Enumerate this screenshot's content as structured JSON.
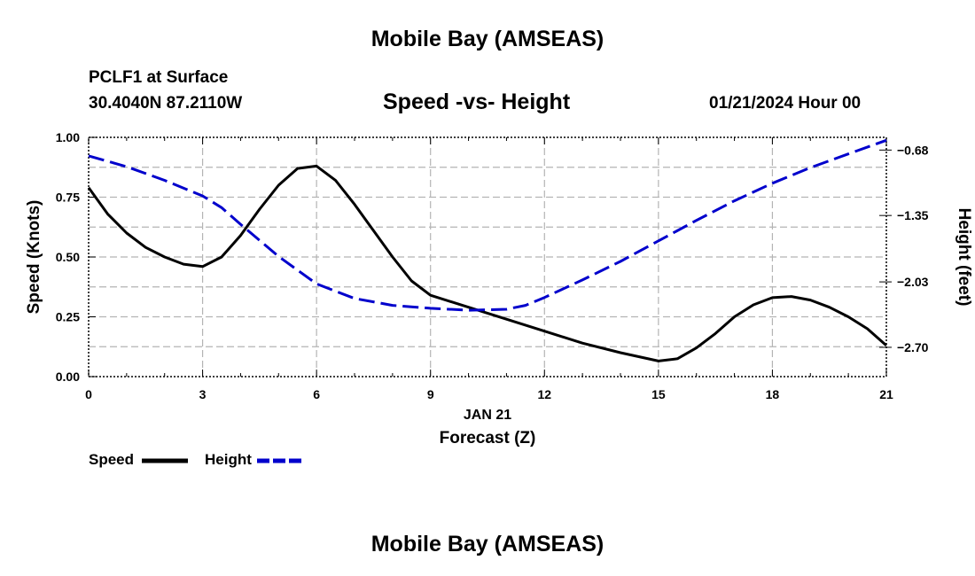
{
  "header": {
    "top_title": "Mobile Bay (AMSEAS)",
    "station": "PCLF1 at Surface",
    "coords": "30.4040N  87.2110W",
    "subtitle": "Speed -vs- Height",
    "datetime": "01/21/2024 Hour 00",
    "bottom_title": "Mobile Bay (AMSEAS)"
  },
  "colors": {
    "speed": "#000000",
    "height": "#0000cc",
    "grid": "#b4b4b4"
  },
  "chart_data": {
    "type": "line",
    "title": "Speed -vs- Height",
    "xlabel": "Forecast (Z)",
    "xdate": "JAN 21",
    "ylabel": "Speed (Knots)",
    "y2label": "Height (feet)",
    "xlim": [
      0,
      21
    ],
    "ylim": [
      0,
      1
    ],
    "y2lim": [
      -3.0,
      -0.55
    ],
    "x_ticks": [
      "0",
      "3",
      "6",
      "9",
      "12",
      "15",
      "18",
      "21"
    ],
    "y_ticks": [
      "0.00",
      "0.25",
      "0.50",
      "0.75",
      "1.00"
    ],
    "y2_ticks": [
      "-0.68",
      "-1.35",
      "-2.03",
      "-2.70"
    ],
    "grid": true,
    "series": [
      {
        "name": "Speed",
        "axis": "left",
        "style": "solid",
        "x": [
          0,
          0.5,
          1,
          1.5,
          2,
          2.5,
          3,
          3.5,
          4,
          4.5,
          5,
          5.5,
          6,
          6.5,
          7,
          7.5,
          8,
          8.5,
          9,
          10,
          11,
          12,
          13,
          14,
          15,
          15.5,
          16,
          16.5,
          17,
          17.5,
          18,
          18.5,
          19,
          19.5,
          20,
          20.5,
          21
        ],
        "values": [
          0.79,
          0.68,
          0.6,
          0.54,
          0.5,
          0.47,
          0.46,
          0.5,
          0.59,
          0.7,
          0.8,
          0.87,
          0.88,
          0.82,
          0.72,
          0.61,
          0.5,
          0.4,
          0.34,
          0.29,
          0.24,
          0.19,
          0.14,
          0.1,
          0.065,
          0.075,
          0.12,
          0.18,
          0.25,
          0.3,
          0.33,
          0.335,
          0.32,
          0.29,
          0.25,
          0.2,
          0.13
        ]
      },
      {
        "name": "Height",
        "axis": "right",
        "style": "dashed",
        "x": [
          0,
          1,
          2,
          3,
          3.5,
          4,
          5,
          6,
          7,
          8,
          9,
          10,
          11,
          11.5,
          12,
          13,
          14,
          15,
          16,
          17,
          18,
          19,
          20,
          21
        ],
        "values": [
          -0.74,
          -0.85,
          -0.99,
          -1.15,
          -1.27,
          -1.44,
          -1.77,
          -2.05,
          -2.2,
          -2.27,
          -2.3,
          -2.32,
          -2.31,
          -2.27,
          -2.19,
          -2.01,
          -1.82,
          -1.61,
          -1.4,
          -1.2,
          -1.02,
          -0.86,
          -0.72,
          -0.58
        ]
      }
    ],
    "legend": {
      "position": "bottom-left",
      "entries": [
        "Speed",
        "Height"
      ]
    }
  }
}
